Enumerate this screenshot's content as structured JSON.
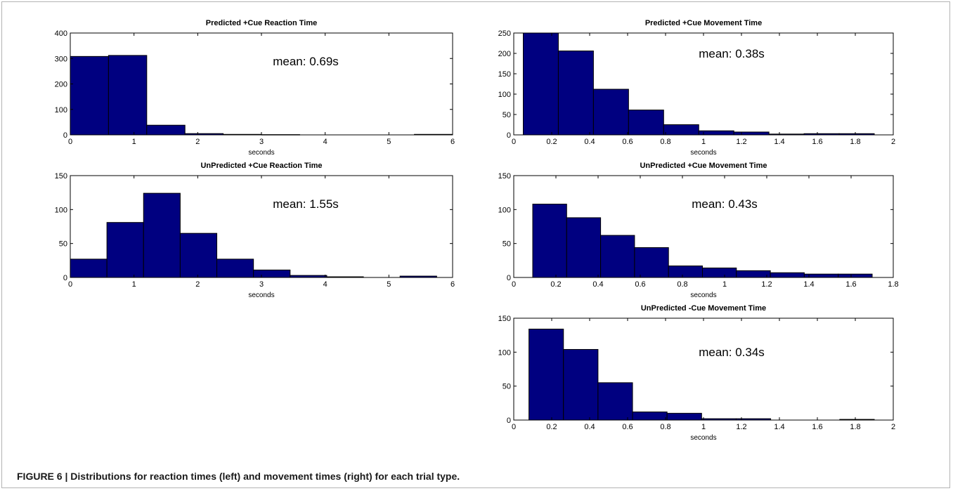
{
  "caption": {
    "label": "FIGURE 6",
    "separator": " | ",
    "text": "Distributions for reaction times (left) and movement times (right) for each trial type."
  },
  "colors": {
    "bar_fill": "#000080",
    "bar_stroke": "#000000",
    "axes": "#000000"
  },
  "chart_data": [
    {
      "id": "predicted-cue-reaction-time",
      "type": "bar",
      "title": "Predicted +Cue Reaction Time",
      "xlabel": "seconds",
      "ylabel": "",
      "annotation": "mean: 0.69s",
      "xlim": [
        0,
        6
      ],
      "ylim": [
        0,
        400
      ],
      "xticks": [
        0,
        1,
        2,
        3,
        4,
        5,
        6
      ],
      "yticks": [
        0,
        100,
        200,
        300,
        400
      ],
      "bin_edges": [
        0,
        0.6,
        1.2,
        1.8,
        2.4,
        3.0,
        3.6,
        4.2,
        4.8,
        5.4,
        6.0
      ],
      "values": [
        308,
        312,
        38,
        5,
        2,
        1,
        0,
        0,
        0,
        2
      ]
    },
    {
      "id": "predicted-cue-movement-time",
      "type": "bar",
      "title": "Predicted +Cue Movement Time",
      "xlabel": "seconds",
      "ylabel": "",
      "annotation": "mean: 0.38s",
      "xlim": [
        0,
        2
      ],
      "ylim": [
        0,
        250
      ],
      "xticks": [
        0,
        0.2,
        0.4,
        0.6,
        0.8,
        1,
        1.2,
        1.4,
        1.6,
        1.8,
        2
      ],
      "yticks": [
        0,
        50,
        100,
        150,
        200,
        250
      ],
      "bin_edges": [
        0.05,
        0.235,
        0.42,
        0.605,
        0.79,
        0.975,
        1.16,
        1.345,
        1.53,
        1.715,
        1.9
      ],
      "values": [
        250,
        206,
        112,
        61,
        25,
        10,
        7,
        2,
        3,
        3
      ]
    },
    {
      "id": "unpredicted-cue-reaction-time",
      "type": "bar",
      "title": "UnPredicted +Cue Reaction Time",
      "xlabel": "seconds",
      "ylabel": "",
      "annotation": "mean: 1.55s",
      "xlim": [
        0,
        6
      ],
      "ylim": [
        0,
        150
      ],
      "xticks": [
        0,
        1,
        2,
        3,
        4,
        5,
        6
      ],
      "yticks": [
        0,
        50,
        100,
        150
      ],
      "bin_edges": [
        0,
        0.575,
        1.15,
        1.725,
        2.3,
        2.875,
        3.45,
        4.025,
        4.6,
        5.175,
        5.75
      ],
      "values": [
        27,
        81,
        124,
        65,
        27,
        11,
        3,
        1,
        0,
        2
      ]
    },
    {
      "id": "unpredicted-cue-movement-time",
      "type": "bar",
      "title": "UnPredicted +Cue Movement Time",
      "xlabel": "seconds",
      "ylabel": "",
      "annotation": "mean: 0.43s",
      "xlim": [
        0,
        1.8
      ],
      "ylim": [
        0,
        150
      ],
      "xticks": [
        0,
        0.2,
        0.4,
        0.6,
        0.8,
        1,
        1.2,
        1.4,
        1.6,
        1.8
      ],
      "yticks": [
        0,
        50,
        100,
        150
      ],
      "bin_edges": [
        0.09,
        0.251,
        0.412,
        0.573,
        0.734,
        0.895,
        1.056,
        1.217,
        1.378,
        1.539,
        1.7
      ],
      "values": [
        108,
        88,
        62,
        44,
        17,
        14,
        10,
        7,
        5,
        5
      ]
    },
    {
      "id": "unpredicted-nocue-movement-time",
      "type": "bar",
      "title": "UnPredicted -Cue Movement Time",
      "xlabel": "seconds",
      "ylabel": "",
      "annotation": "mean: 0.34s",
      "xlim": [
        0,
        2
      ],
      "ylim": [
        0,
        150
      ],
      "xticks": [
        0,
        0.2,
        0.4,
        0.6,
        0.8,
        1,
        1.2,
        1.4,
        1.6,
        1.8,
        2
      ],
      "yticks": [
        0,
        50,
        100,
        150
      ],
      "bin_edges": [
        0.08,
        0.262,
        0.444,
        0.626,
        0.808,
        0.99,
        1.172,
        1.354,
        1.536,
        1.718,
        1.9
      ],
      "values": [
        134,
        104,
        55,
        12,
        10,
        2,
        2,
        0,
        0,
        1
      ]
    }
  ]
}
